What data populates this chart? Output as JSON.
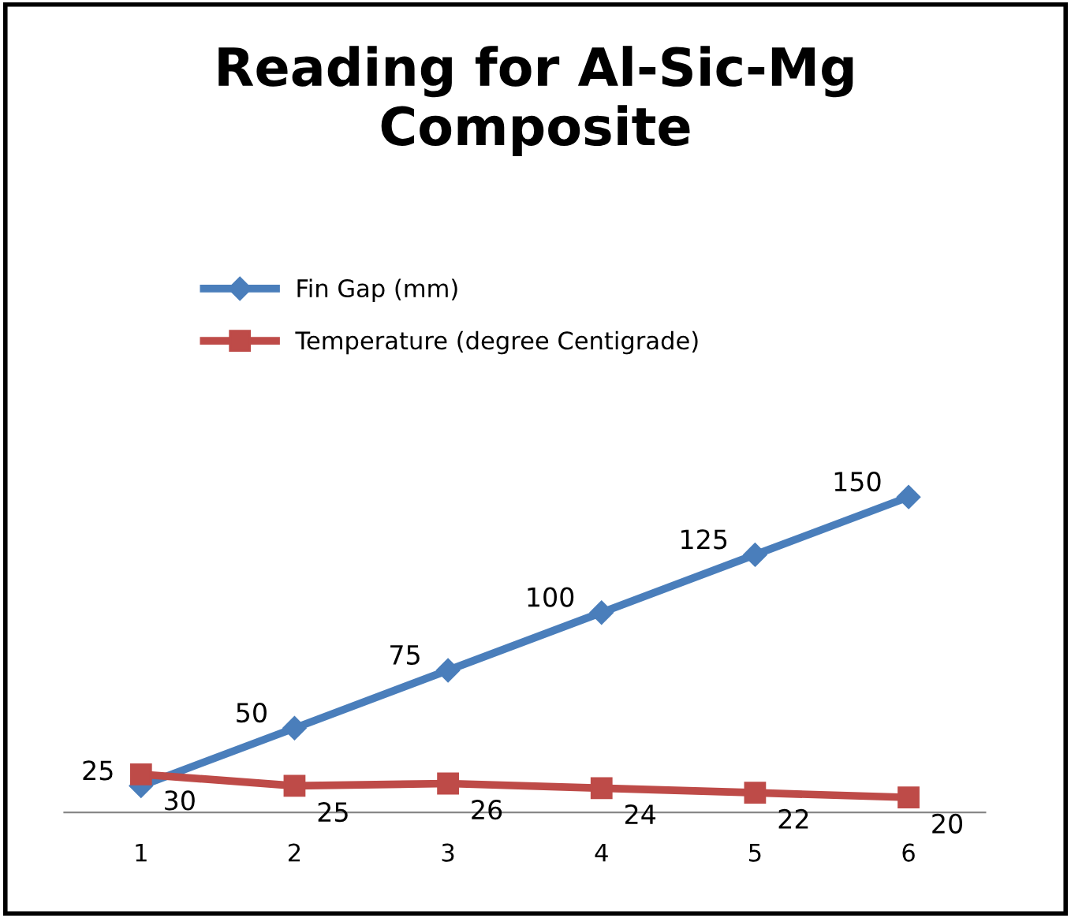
{
  "chart_data": {
    "type": "line",
    "title": "Reading for Al-Sic-Mg\nComposite",
    "categories": [
      "1",
      "2",
      "3",
      "4",
      "5",
      "6"
    ],
    "series": [
      {
        "name": "Fin Gap (mm)",
        "color": "#4a7ebb",
        "marker": "diamond",
        "values": [
          25,
          50,
          75,
          100,
          125,
          150
        ]
      },
      {
        "name": "Temperature (degree Centigrade)",
        "color": "#be4b48",
        "marker": "square",
        "values": [
          30,
          25,
          26,
          24,
          22,
          20
        ]
      }
    ],
    "data_labels": true,
    "legend": "top left",
    "grid": false,
    "tick_labels": "x"
  }
}
